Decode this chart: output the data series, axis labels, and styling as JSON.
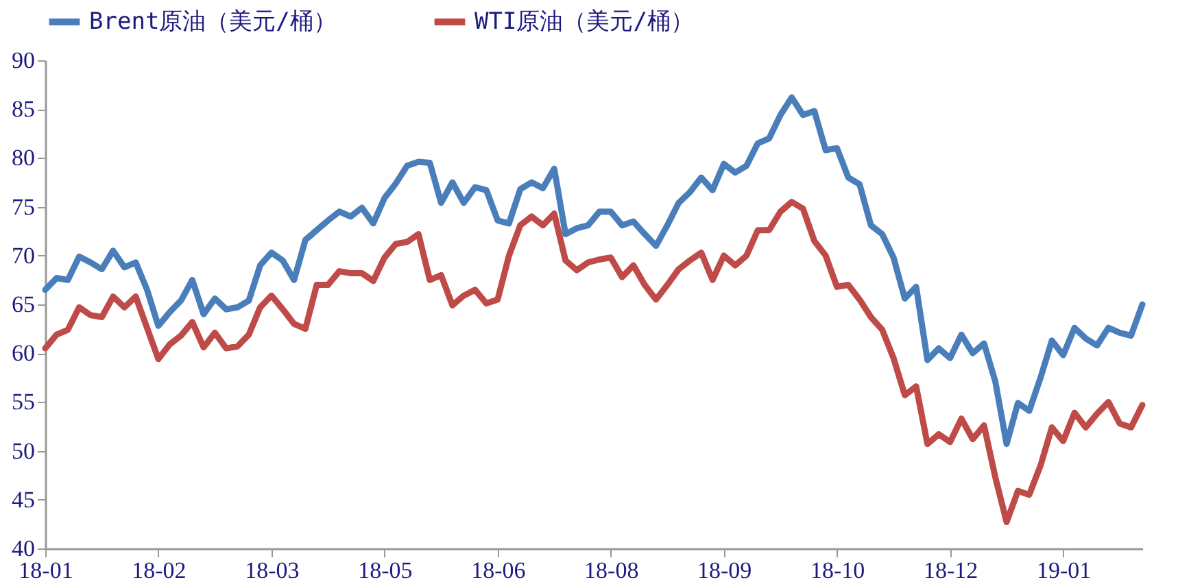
{
  "chart_data": {
    "type": "line",
    "categories": [
      "18-01",
      null,
      null,
      null,
      null,
      null,
      null,
      null,
      null,
      null,
      "18-02",
      null,
      null,
      null,
      null,
      null,
      null,
      null,
      null,
      null,
      "18-03",
      null,
      null,
      null,
      null,
      null,
      null,
      null,
      null,
      null,
      "18-05",
      null,
      null,
      null,
      null,
      null,
      null,
      null,
      null,
      null,
      "18-06",
      null,
      null,
      null,
      null,
      null,
      null,
      null,
      null,
      null,
      "18-08",
      null,
      null,
      null,
      null,
      null,
      null,
      null,
      null,
      null,
      "18-09",
      null,
      null,
      null,
      null,
      null,
      null,
      null,
      null,
      null,
      "18-10",
      null,
      null,
      null,
      null,
      null,
      null,
      null,
      null,
      null,
      "18-12",
      null,
      null,
      null,
      null,
      null,
      null,
      null,
      null,
      null,
      "19-01",
      null,
      null,
      null,
      null,
      null,
      null,
      null
    ],
    "series": [
      {
        "name": "Brent原油（美元/桶）",
        "color": "#4a7ebb",
        "values": [
          66.5,
          67.7,
          67.5,
          69.9,
          69.3,
          68.6,
          70.5,
          68.8,
          69.3,
          66.5,
          62.8,
          64.2,
          65.4,
          67.5,
          64,
          65.6,
          64.5,
          64.7,
          65.4,
          69,
          70.3,
          69.5,
          67.5,
          71.6,
          72.6,
          73.6,
          74.5,
          74,
          74.9,
          73.3,
          75.9,
          77.4,
          79.2,
          79.6,
          79.5,
          75.4,
          77.5,
          75.4,
          77,
          76.7,
          73.6,
          73.3,
          76.8,
          77.5,
          76.9,
          78.9,
          72.2,
          72.8,
          73.1,
          74.5,
          74.5,
          73.1,
          73.5,
          72.2,
          71,
          73.1,
          75.4,
          76.5,
          78,
          76.7,
          79.4,
          78.5,
          79.2,
          81.5,
          82,
          84.4,
          86.2,
          84.4,
          84.8,
          80.8,
          81,
          78,
          77.3,
          73.1,
          72.2,
          69.8,
          65.6,
          66.8,
          59.3,
          60.5,
          59.5,
          61.9,
          60,
          61,
          57.1,
          50.7,
          54.9,
          54.1,
          57.5,
          61.3,
          59.8,
          62.6,
          61.5,
          60.8,
          62.6,
          62.1,
          61.8,
          65
        ]
      },
      {
        "name": "WTI原油（美元/桶）",
        "color": "#be4b48",
        "values": [
          60.5,
          61.9,
          62.4,
          64.7,
          63.9,
          63.7,
          65.8,
          64.7,
          65.8,
          62.6,
          59.4,
          60.9,
          61.8,
          63.2,
          60.6,
          62.1,
          60.5,
          60.7,
          61.9,
          64.7,
          65.9,
          64.5,
          63,
          62.5,
          67,
          67,
          68.4,
          68.2,
          68.2,
          67.4,
          69.8,
          71.2,
          71.4,
          72.2,
          67.5,
          68,
          64.9,
          65.9,
          66.5,
          65.1,
          65.5,
          70,
          73.1,
          74,
          73.1,
          74.3,
          69.5,
          68.5,
          69.3,
          69.6,
          69.8,
          67.8,
          69,
          67,
          65.5,
          67,
          68.6,
          69.5,
          70.3,
          67.5,
          70,
          69,
          70,
          72.6,
          72.6,
          74.5,
          75.5,
          74.8,
          71.5,
          70,
          66.8,
          67,
          65.5,
          63.7,
          62.4,
          59.5,
          55.7,
          56.6,
          50.7,
          51.7,
          50.9,
          53.3,
          51.2,
          52.6,
          47.3,
          42.7,
          45.9,
          45.5,
          48.5,
          52.4,
          51,
          53.9,
          52.4,
          53.8,
          55,
          52.8,
          52.4,
          54.7
        ]
      }
    ],
    "ylim": [
      40,
      90
    ],
    "yticks": [
      40,
      45,
      50,
      55,
      60,
      65,
      70,
      75,
      80,
      85,
      90
    ],
    "legend": "top"
  }
}
